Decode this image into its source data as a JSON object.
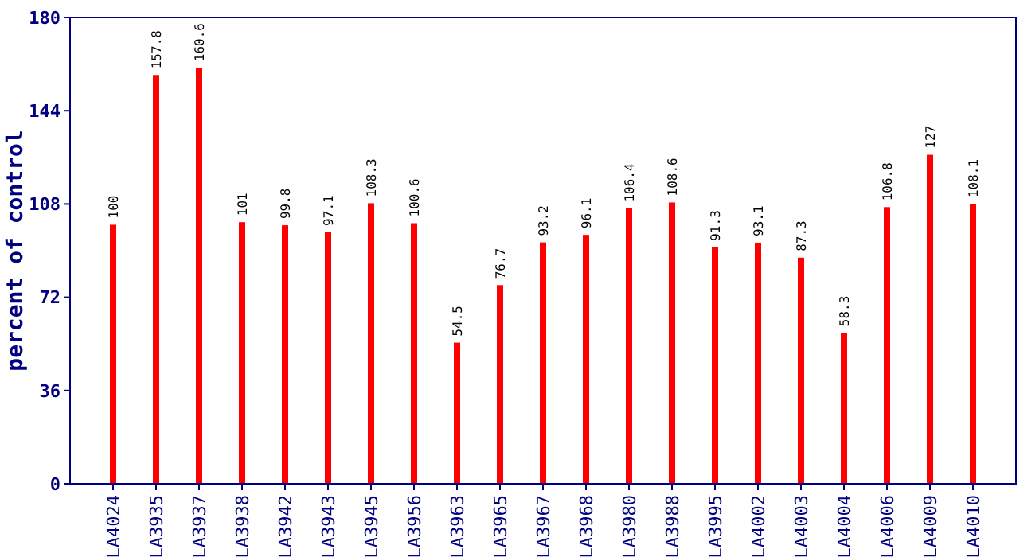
{
  "chart_data": {
    "type": "bar",
    "ylabel": "percent of control",
    "categories": [
      "LA4024",
      "LA3935",
      "LA3937",
      "LA3938",
      "LA3942",
      "LA3943",
      "LA3945",
      "LA3956",
      "LA3963",
      "LA3965",
      "LA3967",
      "LA3968",
      "LA3980",
      "LA3988",
      "LA3995",
      "LA4002",
      "LA4003",
      "LA4004",
      "LA4006",
      "LA4009",
      "LA4010"
    ],
    "values": [
      100,
      157.8,
      160.6,
      101,
      99.8,
      97.1,
      108.3,
      100.6,
      54.5,
      76.7,
      93.2,
      96.1,
      106.4,
      108.6,
      91.3,
      93.1,
      87.3,
      58.3,
      106.8,
      127,
      108.1
    ],
    "color": "#ff0000",
    "ylim": [
      0,
      180
    ],
    "yticks": [
      0,
      36,
      72,
      108,
      144,
      180
    ],
    "grid": false,
    "data_labels": true
  }
}
